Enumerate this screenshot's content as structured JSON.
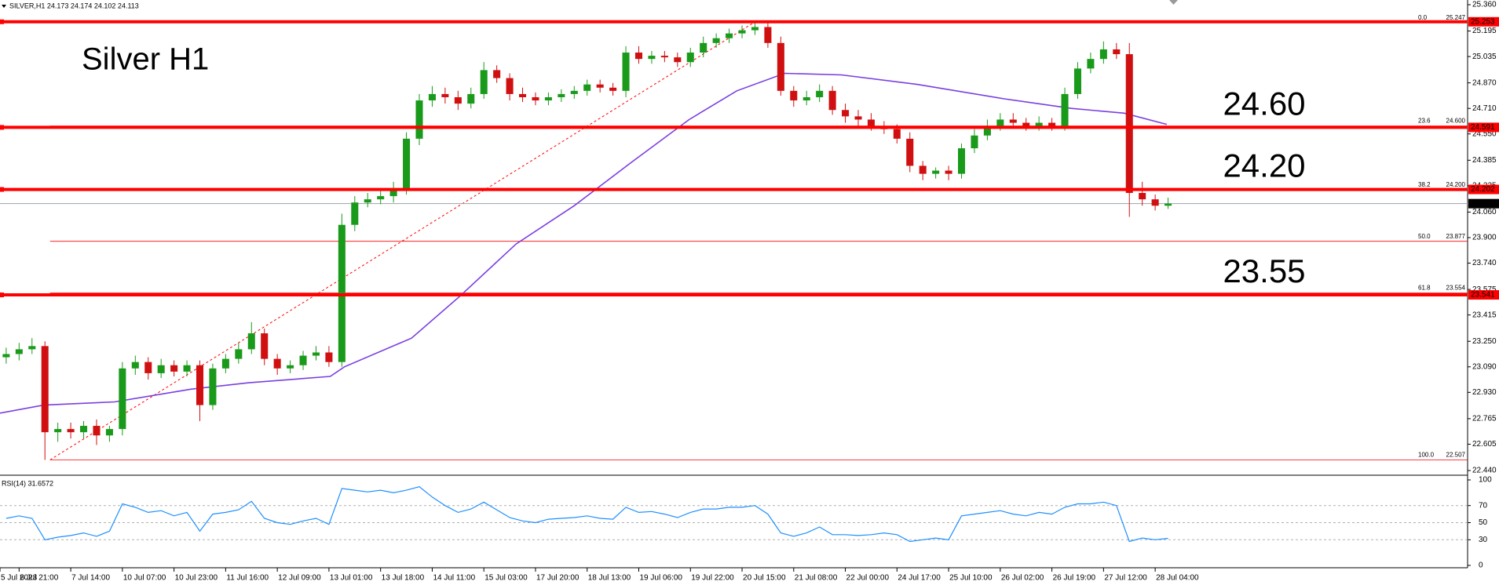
{
  "chart_data": [
    {
      "type": "candlestick",
      "header": "SILVER,H1  24.173 24.174 24.102 24.113",
      "title": "Silver H1",
      "up_color": "#1a9a1a",
      "down_color": "#d01010",
      "x": [
        3,
        4,
        5,
        6,
        7,
        8,
        9,
        10,
        11,
        12,
        13,
        14,
        15,
        16,
        17,
        18,
        19,
        20,
        21,
        22,
        23,
        24,
        25,
        26,
        27,
        28,
        29,
        30,
        31,
        32,
        33,
        34,
        35,
        36,
        37,
        38,
        39,
        40,
        41,
        42,
        43,
        44,
        45,
        46,
        47,
        48,
        49,
        50,
        51,
        52,
        53,
        54,
        55,
        56,
        57,
        58,
        59,
        60,
        61,
        62,
        63,
        64,
        65,
        66,
        67,
        68,
        69,
        70,
        71,
        72,
        73,
        74,
        75,
        76,
        77,
        78,
        79,
        80,
        81,
        82,
        83,
        84,
        85,
        86,
        87,
        88,
        89,
        90,
        91,
        92,
        93
      ],
      "open": [
        23.15,
        23.17,
        23.2,
        23.22,
        22.68,
        22.7,
        22.68,
        22.72,
        22.66,
        22.7,
        23.08,
        23.12,
        23.05,
        23.1,
        23.06,
        23.1,
        22.85,
        23.08,
        23.14,
        23.2,
        23.3,
        23.14,
        23.08,
        23.1,
        23.16,
        23.18,
        23.12,
        23.98,
        24.12,
        24.14,
        24.16,
        24.2,
        24.52,
        24.76,
        24.8,
        24.78,
        24.74,
        24.8,
        24.95,
        24.9,
        24.8,
        24.78,
        24.76,
        24.78,
        24.8,
        24.82,
        24.86,
        24.84,
        24.82,
        25.06,
        25.02,
        25.04,
        25.03,
        25,
        25.06,
        25.12,
        25.15,
        25.18,
        25.2,
        25.22,
        25.12,
        24.82,
        24.76,
        24.78,
        24.82,
        24.7,
        24.66,
        24.64,
        24.6,
        24.58,
        24.52,
        24.35,
        24.3,
        24.32,
        24.3,
        24.46,
        24.54,
        24.6,
        24.64,
        24.62,
        24.6,
        24.62,
        24.6,
        24.8,
        24.96,
        25.02,
        25.08,
        25.05,
        24.18,
        24.14,
        24.1
      ],
      "high": [
        23.21,
        23.24,
        23.27,
        23.25,
        22.74,
        22.74,
        22.75,
        22.76,
        22.72,
        23.12,
        23.16,
        23.15,
        23.14,
        23.13,
        23.13,
        23.13,
        23.11,
        23.17,
        23.24,
        23.37,
        23.33,
        23.17,
        23.13,
        23.19,
        23.22,
        23.22,
        24.05,
        24.16,
        24.18,
        24.2,
        24.25,
        24.56,
        24.8,
        24.85,
        24.84,
        24.82,
        24.84,
        25,
        24.98,
        24.93,
        24.84,
        24.81,
        24.81,
        24.83,
        24.85,
        24.89,
        24.89,
        24.87,
        25.1,
        25.1,
        25.07,
        25.07,
        25.06,
        25.09,
        25.16,
        25.18,
        25.21,
        25.23,
        25.247,
        25.25,
        25.16,
        24.85,
        24.82,
        24.86,
        24.85,
        24.74,
        24.7,
        24.68,
        24.63,
        24.61,
        24.56,
        24.38,
        24.34,
        24.35,
        24.49,
        24.58,
        24.64,
        24.68,
        24.68,
        24.65,
        24.66,
        24.65,
        24.84,
        25,
        25.06,
        25.13,
        25.12,
        25.12,
        24.25,
        24.17,
        24.15
      ],
      "low": [
        23.11,
        23.13,
        23.17,
        22.507,
        22.62,
        22.64,
        22.64,
        22.6,
        22.62,
        22.66,
        23.04,
        23.01,
        23.02,
        23.03,
        23.03,
        22.75,
        22.82,
        23.05,
        23.11,
        23.17,
        23.1,
        23.04,
        23.05,
        23.07,
        23.13,
        23.09,
        23.09,
        23.94,
        24.09,
        24.11,
        24.12,
        24.17,
        24.48,
        24.72,
        24.74,
        24.7,
        24.71,
        24.77,
        24.87,
        24.76,
        24.75,
        24.73,
        24.73,
        24.75,
        24.77,
        24.79,
        24.81,
        24.79,
        24.78,
        24.99,
        24.99,
        25,
        24.97,
        24.97,
        25.03,
        25.09,
        25.12,
        25.15,
        25.17,
        25.09,
        24.79,
        24.72,
        24.73,
        24.75,
        24.67,
        24.62,
        24.6,
        24.57,
        24.55,
        24.49,
        24.31,
        24.26,
        24.27,
        24.26,
        24.27,
        24.43,
        24.51,
        24.57,
        24.59,
        24.57,
        24.57,
        24.57,
        24.57,
        24.77,
        24.93,
        24.99,
        25.02,
        24.03,
        24.1,
        24.07,
        24.08
      ],
      "close": [
        23.17,
        23.2,
        23.22,
        22.68,
        22.7,
        22.68,
        22.72,
        22.66,
        22.7,
        23.08,
        23.12,
        23.05,
        23.1,
        23.06,
        23.1,
        22.85,
        23.08,
        23.14,
        23.2,
        23.3,
        23.14,
        23.08,
        23.1,
        23.16,
        23.18,
        23.12,
        23.98,
        24.12,
        24.14,
        24.16,
        24.2,
        24.52,
        24.76,
        24.8,
        24.78,
        24.74,
        24.8,
        24.95,
        24.9,
        24.8,
        24.78,
        24.76,
        24.78,
        24.8,
        24.82,
        24.86,
        24.84,
        24.82,
        25.06,
        25.02,
        25.04,
        25.03,
        25,
        25.06,
        25.12,
        25.15,
        25.18,
        25.2,
        25.22,
        25.12,
        24.82,
        24.76,
        24.78,
        24.82,
        24.7,
        24.66,
        24.64,
        24.6,
        24.58,
        24.52,
        24.35,
        24.3,
        24.32,
        24.3,
        24.46,
        24.54,
        24.6,
        24.64,
        24.62,
        24.6,
        24.62,
        24.6,
        24.8,
        24.96,
        25.02,
        25.08,
        25.05,
        24.18,
        24.14,
        24.1,
        24.113
      ],
      "ma": {
        "color": "#7a3fe0",
        "x": [
          2.52,
          5.9,
          11.4,
          17.3,
          21.8,
          28.1,
          29.2,
          34.4,
          38.1,
          42.5,
          47,
          51.4,
          55.9,
          59.6,
          63.3,
          67.7,
          73.6,
          80.3,
          85.5,
          89.6,
          92.9
        ],
        "values": [
          22.8,
          22.85,
          22.87,
          22.95,
          22.99,
          23.03,
          23.09,
          23.27,
          23.53,
          23.86,
          24.1,
          24.37,
          24.64,
          24.82,
          24.93,
          24.92,
          24.86,
          24.77,
          24.71,
          24.68,
          24.61
        ]
      },
      "levels": [
        {
          "price": 25.253
        },
        {
          "price": 24.591,
          "note": "24.60"
        },
        {
          "price": 24.202,
          "note": "24.20"
        },
        {
          "price": 23.541,
          "note": "23.55"
        }
      ],
      "level_color": "#ff0000",
      "current_price": 24.113,
      "fib_anchor": {
        "x": [
          6.4,
          60.9
        ],
        "y": [
          22.507,
          25.247
        ]
      },
      "fib": [
        {
          "ratio": "0.0",
          "price": 25.247
        },
        {
          "ratio": "23.6",
          "price": {
            "value": 24.6,
            "label": "24.600"
          }
        },
        {
          "ratio": "38.2",
          "price": {
            "value": 24.2,
            "label": "24.200"
          }
        },
        {
          "ratio": "50.0",
          "price": 23.877
        },
        {
          "ratio": "61.8",
          "price": 23.554
        },
        {
          "ratio": "100.0",
          "price": 22.507
        }
      ],
      "ylim": [
        22.44,
        25.36
      ],
      "yticks": [
        {
          "value": 25.36,
          "label": "25.360"
        },
        25.195,
        25.035,
        {
          "value": 24.87,
          "label": "24.870"
        },
        {
          "value": 24.71,
          "label": "24.710"
        },
        {
          "value": 24.55,
          "label": "24.550"
        },
        24.385,
        24.225,
        {
          "value": 24.06,
          "label": "24.060"
        },
        {
          "value": 23.9,
          "label": "23.900"
        },
        {
          "value": 23.74,
          "label": "23.740"
        },
        23.575,
        23.415,
        {
          "value": 23.25,
          "label": "23.250"
        },
        {
          "value": 23.09,
          "label": "23.090"
        },
        {
          "value": 22.93,
          "label": "22.930"
        },
        22.765,
        22.605,
        {
          "value": 22.44,
          "label": "22.440"
        }
      ],
      "xlim": [
        2.52,
        116.2
      ],
      "xticks": [
        {
          "value": 2.52,
          "label": "5 Jul 2023"
        },
        {
          "value": 4,
          "label": "6 Jul 21:00"
        },
        {
          "value": 8,
          "label": "7 Jul 14:00"
        },
        {
          "value": 12,
          "label": "10 Jul 07:00"
        },
        {
          "value": 16,
          "label": "10 Jul 23:00"
        },
        {
          "value": 20,
          "label": "11 Jul 16:00"
        },
        {
          "value": 24,
          "label": "12 Jul 09:00"
        },
        {
          "value": 28,
          "label": "13 Jul 01:00"
        },
        {
          "value": 32,
          "label": "13 Jul 18:00"
        },
        {
          "value": 36,
          "label": "14 Jul 11:00"
        },
        {
          "value": 40,
          "label": "15 Jul 03:00"
        },
        {
          "value": 44,
          "label": "17 Jul 20:00"
        },
        {
          "value": 48,
          "label": "18 Jul 13:00"
        },
        {
          "value": 52,
          "label": "19 Jul 06:00"
        },
        {
          "value": 56,
          "label": "19 Jul 22:00"
        },
        {
          "value": 60,
          "label": "20 Jul 15:00"
        },
        {
          "value": 64,
          "label": "21 Jul 08:00"
        },
        {
          "value": 68,
          "label": "22 Jul 00:00"
        },
        {
          "value": 72,
          "label": "24 Jul 17:00"
        },
        {
          "value": 76,
          "label": "25 Jul 10:00"
        },
        {
          "value": 80,
          "label": "26 Jul 02:00"
        },
        {
          "value": 84,
          "label": "26 Jul 19:00"
        },
        {
          "value": 88,
          "label": "27 Jul 12:00"
        },
        {
          "value": 92,
          "label": "28 Jul 04:00"
        }
      ]
    },
    {
      "type": "line",
      "label": "RSI(14) 31.6572",
      "color": "#1e8fff",
      "x": [
        3,
        4,
        5,
        6,
        7,
        8,
        9,
        10,
        11,
        12,
        13,
        14,
        15,
        16,
        17,
        18,
        19,
        20,
        21,
        22,
        23,
        24,
        25,
        26,
        27,
        28,
        29,
        30,
        31,
        32,
        33,
        34,
        35,
        36,
        37,
        38,
        39,
        40,
        41,
        42,
        43,
        44,
        45,
        46,
        47,
        48,
        49,
        50,
        51,
        52,
        53,
        54,
        55,
        56,
        57,
        58,
        59,
        60,
        61,
        62,
        63,
        64,
        65,
        66,
        67,
        68,
        69,
        70,
        71,
        72,
        73,
        74,
        75,
        76,
        77,
        78,
        79,
        80,
        81,
        82,
        83,
        84,
        85,
        86,
        87,
        88,
        89,
        90,
        91,
        92,
        93
      ],
      "values": [
        55,
        58,
        55,
        30,
        33,
        35,
        38,
        34,
        40,
        72,
        68,
        62,
        64,
        58,
        62,
        40,
        60,
        62,
        65,
        75,
        55,
        50,
        48,
        52,
        55,
        48,
        90,
        88,
        86,
        88,
        85,
        88,
        92,
        80,
        70,
        62,
        66,
        74,
        65,
        56,
        52,
        50,
        54,
        55,
        56,
        58,
        55,
        54,
        68,
        62,
        63,
        60,
        56,
        62,
        66,
        66,
        68,
        68,
        70,
        60,
        38,
        34,
        38,
        45,
        36,
        36,
        35,
        36,
        38,
        36,
        28,
        30,
        32,
        30,
        58,
        60,
        62,
        64,
        60,
        58,
        62,
        60,
        68,
        72,
        72,
        74,
        70,
        28,
        32,
        30,
        31.6572
      ],
      "ylim": [
        0,
        100
      ],
      "yticks": [
        100,
        70,
        50,
        30,
        0
      ],
      "grid": true
    }
  ]
}
